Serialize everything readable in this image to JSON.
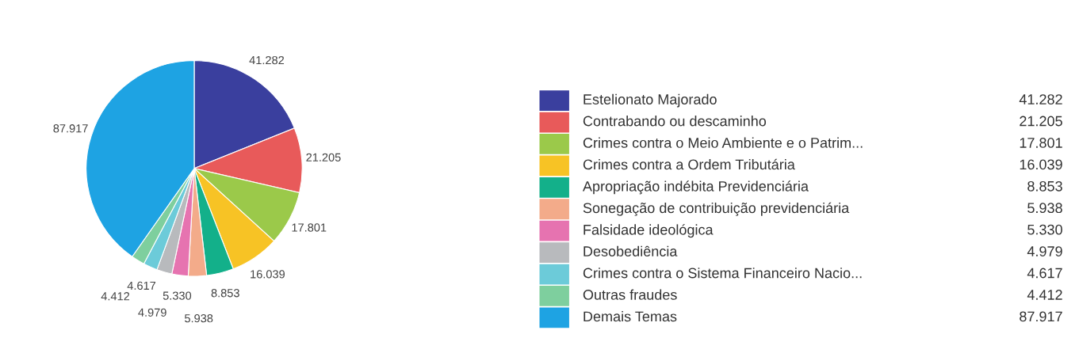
{
  "chart_data": {
    "type": "pie",
    "categories": [
      "Estelionato Majorado",
      "Contrabando ou descaminho",
      "Crimes contra o Meio Ambiente e o Patrim...",
      "Crimes contra a Ordem Tributária",
      "Apropriação indébita Previdenciária",
      "Sonegação de contribuição previdenciária",
      "Falsidade ideológica",
      "Desobediência",
      "Crimes contra o Sistema Financeiro Nacio...",
      "Outras fraudes",
      "Demais Temas"
    ],
    "values": [
      41282,
      21205,
      17801,
      16039,
      8853,
      5938,
      5330,
      4979,
      4617,
      4412,
      87917
    ],
    "value_labels": [
      "41.282",
      "21.205",
      "17.801",
      "16.039",
      "8.853",
      "5.938",
      "5.330",
      "4.979",
      "4.617",
      "4.412",
      "87.917"
    ],
    "colors": [
      "#3a3f9e",
      "#e85a5a",
      "#9bc94a",
      "#f7c325",
      "#13b08a",
      "#f3ab8a",
      "#e673b0",
      "#b8babd",
      "#6ccbd9",
      "#7ecf9e",
      "#1ea3e3"
    ],
    "legend": "right"
  }
}
